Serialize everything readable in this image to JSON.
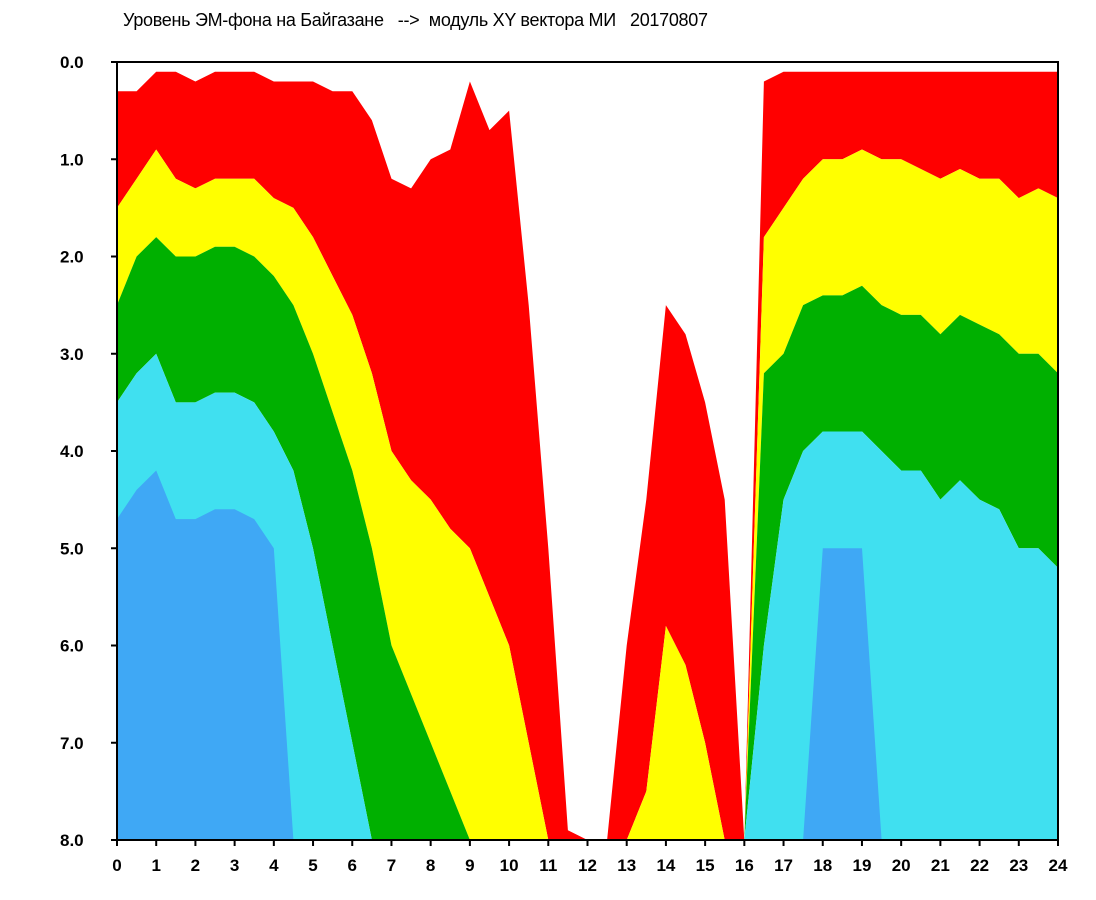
{
  "chart_data": {
    "type": "heatmap",
    "title": "Уровень ЭМ-фона на Байгазане   -->  модуль XY вектора МИ   20170807",
    "xlabel": "",
    "ylabel": "",
    "xlim": [
      0,
      24
    ],
    "ylim": [
      0.0,
      8.0
    ],
    "y_inverted": true,
    "x_ticks": [
      "0",
      "1",
      "2",
      "3",
      "4",
      "5",
      "6",
      "7",
      "8",
      "9",
      "10",
      "11",
      "12",
      "13",
      "14",
      "15",
      "16",
      "17",
      "18",
      "19",
      "20",
      "21",
      "22",
      "23",
      "24"
    ],
    "y_ticks": [
      "0.0",
      "1.0",
      "2.0",
      "3.0",
      "4.0",
      "5.0",
      "6.0",
      "7.0",
      "8.0"
    ],
    "grid": false,
    "color_scale": [
      "#ff0000",
      "#ffff00",
      "#00b000",
      "#40e0f0",
      "#4040ff"
    ],
    "x": [
      0,
      0.5,
      1,
      1.5,
      2,
      2.5,
      3,
      3.5,
      4,
      4.5,
      5,
      5.5,
      6,
      6.5,
      7,
      7.5,
      8,
      8.5,
      9,
      9.5,
      10,
      10.5,
      11,
      11.5,
      12,
      12.5,
      13,
      13.5,
      14,
      14.5,
      15,
      15.5,
      16,
      16.5,
      17,
      17.5,
      18,
      18.5,
      19,
      19.5,
      20,
      20.5,
      21,
      21.5,
      22,
      22.5,
      23,
      23.5,
      24
    ],
    "series": [
      {
        "values": [
          0.3,
          0.3,
          0.1,
          0.1,
          0.2,
          0.1,
          0.1,
          0.1,
          0.2,
          0.2,
          0.2,
          0.3,
          0.3,
          0.6,
          1.2,
          1.3,
          1.0,
          0.9,
          0.2,
          0.7,
          0.5,
          2.5,
          5.0,
          7.9,
          8.0,
          8.0,
          6.0,
          4.5,
          2.5,
          2.8,
          3.5,
          4.5,
          8.0,
          0.2,
          0.1,
          0.1,
          0.1,
          0.1,
          0.1,
          0.1,
          0.1,
          0.1,
          0.1,
          0.1,
          0.1,
          0.1,
          0.1,
          0.1,
          0.1
        ]
      },
      {
        "values": [
          1.5,
          1.2,
          0.9,
          1.2,
          1.3,
          1.2,
          1.2,
          1.2,
          1.4,
          1.5,
          1.8,
          2.2,
          2.6,
          3.2,
          4.0,
          4.3,
          4.5,
          4.8,
          5.0,
          5.5,
          6.0,
          7.0,
          8.0,
          8.0,
          8.0,
          8.0,
          8.0,
          7.5,
          5.8,
          6.2,
          7.0,
          8.0,
          8.0,
          1.8,
          1.5,
          1.2,
          1.0,
          1.0,
          0.9,
          1.0,
          1.0,
          1.1,
          1.2,
          1.1,
          1.2,
          1.2,
          1.4,
          1.3,
          1.4
        ]
      },
      {
        "values": [
          2.5,
          2.0,
          1.8,
          2.0,
          2.0,
          1.9,
          1.9,
          2.0,
          2.2,
          2.5,
          3.0,
          3.6,
          4.2,
          5.0,
          6.0,
          6.5,
          7.0,
          7.5,
          8.0,
          8.0,
          8.0,
          8.0,
          8.0,
          8.0,
          8.0,
          8.0,
          8.0,
          8.0,
          8.0,
          8.0,
          8.0,
          8.0,
          8.0,
          3.2,
          3.0,
          2.5,
          2.4,
          2.4,
          2.3,
          2.5,
          2.6,
          2.6,
          2.8,
          2.6,
          2.7,
          2.8,
          3.0,
          3.0,
          3.2
        ]
      },
      {
        "values": [
          3.5,
          3.2,
          3.0,
          3.5,
          3.5,
          3.4,
          3.4,
          3.5,
          3.8,
          4.2,
          5.0,
          6.0,
          7.0,
          8.0,
          8.0,
          8.0,
          8.0,
          8.0,
          8.0,
          8.0,
          8.0,
          8.0,
          8.0,
          8.0,
          8.0,
          8.0,
          8.0,
          8.0,
          8.0,
          8.0,
          8.0,
          8.0,
          8.0,
          6.0,
          4.5,
          4.0,
          3.8,
          3.8,
          3.8,
          4.0,
          4.2,
          4.2,
          4.5,
          4.3,
          4.5,
          4.6,
          5.0,
          5.0,
          5.2
        ]
      }
    ]
  }
}
